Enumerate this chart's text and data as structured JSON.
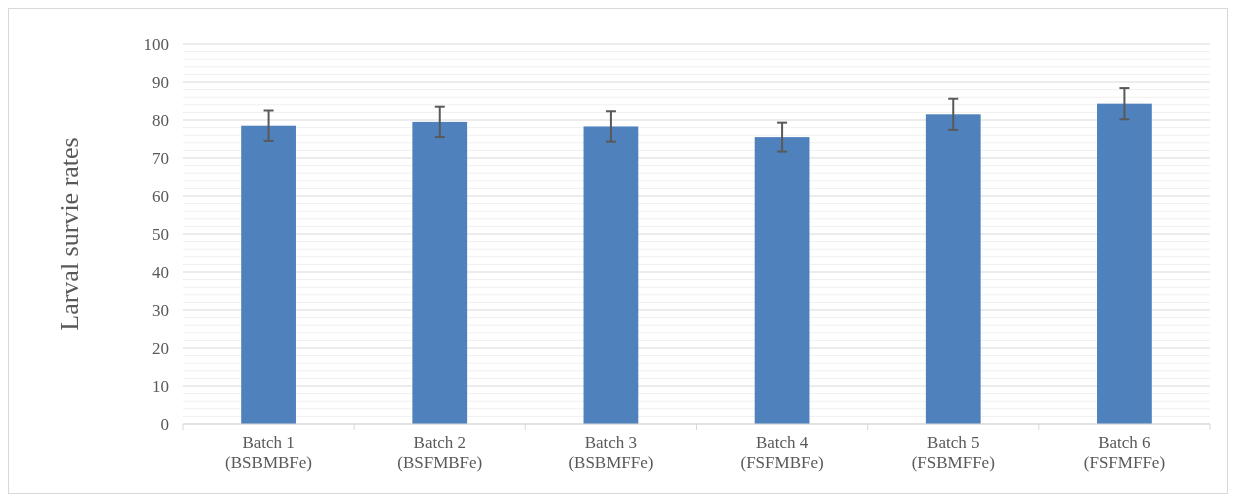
{
  "chart_data": {
    "type": "bar",
    "ylabel": "Larval survie rates",
    "categories": [
      "Batch 1 (BSBMBFe)",
      "Batch 2 (BSFMBFe)",
      "Batch 3 (BSBMFFe)",
      "Batch 4 (FSFMBFe)",
      "Batch 5 (FSBMFFe)",
      "Batch 6 (FSFMFFe)"
    ],
    "values": [
      78.5,
      79.5,
      78.3,
      75.5,
      81.5,
      84.3
    ],
    "errors": [
      4,
      4,
      4,
      3.8,
      4.1,
      4.1
    ],
    "color": "#4f81bd",
    "ylim": [
      0,
      100
    ],
    "yticks": [
      0,
      {
        "value": 2,
        "label": null
      },
      {
        "value": 4,
        "label": null
      },
      {
        "value": 6,
        "label": null
      },
      {
        "value": 8,
        "label": null
      },
      10,
      {
        "value": 12,
        "label": null
      },
      {
        "value": 14,
        "label": null
      },
      {
        "value": 16,
        "label": null
      },
      {
        "value": 18,
        "label": null
      },
      20,
      {
        "value": 22,
        "label": null
      },
      {
        "value": 24,
        "label": null
      },
      {
        "value": 26,
        "label": null
      },
      {
        "value": 28,
        "label": null
      },
      30,
      {
        "value": 32,
        "label": null
      },
      {
        "value": 34,
        "label": null
      },
      {
        "value": 36,
        "label": null
      },
      {
        "value": 38,
        "label": null
      },
      40,
      {
        "value": 42,
        "label": null
      },
      {
        "value": 44,
        "label": null
      },
      {
        "value": 46,
        "label": null
      },
      {
        "value": 48,
        "label": null
      },
      50,
      {
        "value": 52,
        "label": null
      },
      {
        "value": 54,
        "label": null
      },
      {
        "value": 56,
        "label": null
      },
      {
        "value": 58,
        "label": null
      },
      60,
      {
        "value": 62,
        "label": null
      },
      {
        "value": 64,
        "label": null
      },
      {
        "value": 66,
        "label": null
      },
      {
        "value": 68,
        "label": null
      },
      70,
      {
        "value": 72,
        "label": null
      },
      {
        "value": 74,
        "label": null
      },
      {
        "value": 76,
        "label": null
      },
      {
        "value": 78,
        "label": null
      },
      80,
      {
        "value": 82,
        "label": null
      },
      {
        "value": 84,
        "label": null
      },
      {
        "value": 86,
        "label": null
      },
      {
        "value": 88,
        "label": null
      },
      90,
      {
        "value": 92,
        "label": null
      },
      {
        "value": 94,
        "label": null
      },
      {
        "value": 96,
        "label": null
      },
      {
        "value": 98,
        "label": null
      },
      100
    ],
    "grid": "y"
  }
}
